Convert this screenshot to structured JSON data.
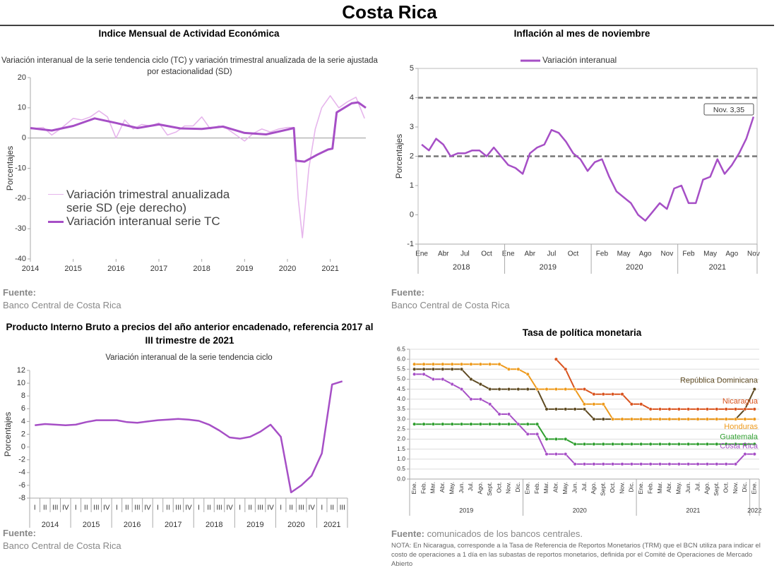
{
  "title": "Costa Rica",
  "chart_data": [
    {
      "type": "line",
      "title": "Indice Mensual de  Actividad Económica",
      "subtitle": "Variación interanual de la serie tendencia ciclo (TC) y variación trimestral anualizada de la serie ajustada por estacionalidad (SD)",
      "ylabel": "Porcentajes",
      "xlim": [
        2014,
        2021.83
      ],
      "xticks": [
        2014,
        2015,
        2016,
        2017,
        2018,
        2019,
        2020,
        2021
      ],
      "ylim": [
        -40,
        20
      ],
      "yticks": [
        -40,
        -30,
        -20,
        -10,
        0,
        10,
        20
      ],
      "series": [
        {
          "name": "Variación trimestral anualizada serie SD (eje derecho)",
          "color": "#e6b5ec",
          "x": [
            2014,
            2014.3,
            2014.5,
            2014.7,
            2015,
            2015.2,
            2015.4,
            2015.6,
            2015.8,
            2016,
            2016.2,
            2016.4,
            2016.6,
            2016.8,
            2017,
            2017.2,
            2017.4,
            2017.6,
            2017.8,
            2018,
            2018.2,
            2018.4,
            2018.6,
            2018.8,
            2019,
            2019.2,
            2019.4,
            2019.6,
            2019.8,
            2020,
            2020.15,
            2020.25,
            2020.35,
            2020.5,
            2020.65,
            2020.8,
            2021,
            2021.2,
            2021.4,
            2021.6,
            2021.8
          ],
          "values": [
            3,
            3.5,
            1,
            3,
            6.5,
            6,
            7,
            9,
            7,
            0,
            6,
            3,
            4.5,
            4,
            5,
            1,
            2,
            4,
            4,
            7,
            3,
            4,
            3,
            1,
            -1,
            1.5,
            3,
            2,
            3,
            3.5,
            3.5,
            -20,
            -33,
            -10,
            3,
            10,
            14,
            10,
            12,
            13.5,
            6.5
          ]
        },
        {
          "name": "Variación interanual serie TC",
          "color": "#a64fc6",
          "x": [
            2014,
            2014.5,
            2015,
            2015.5,
            2016,
            2016.5,
            2017,
            2017.5,
            2018,
            2018.5,
            2019,
            2019.5,
            2020,
            2020.15,
            2020.2,
            2020.4,
            2020.7,
            2020.95,
            2021.05,
            2021.15,
            2021.5,
            2021.65,
            2021.83
          ],
          "values": [
            3.3,
            2.5,
            4,
            6.5,
            5,
            3.3,
            4.5,
            3.2,
            3,
            3.8,
            1.7,
            1.2,
            2.8,
            3.3,
            -7.5,
            -7.8,
            -5.5,
            -3.8,
            -3.5,
            8.5,
            11.5,
            11.8,
            10
          ]
        }
      ],
      "source_label": "Fuente:",
      "source": "Banco Central de Costa Rica"
    },
    {
      "type": "line",
      "title": "Inflación al mes de noviembre",
      "ylabel": "Porcentajes",
      "categories": [
        "Ene",
        null,
        null,
        "Abr",
        null,
        null,
        "Jul",
        null,
        null,
        "Oct",
        null,
        null,
        "Ene",
        null,
        null,
        "Abr",
        null,
        null,
        "Jul",
        null,
        null,
        "Oct",
        null,
        null,
        null,
        "Feb",
        null,
        null,
        "May",
        null,
        null,
        "Ago",
        null,
        null,
        "Nov",
        null,
        null,
        "Feb",
        null,
        null,
        "May",
        null,
        null,
        "Ago",
        null,
        null,
        "Nov"
      ],
      "x_groups": [
        {
          "label": "2018",
          "count": 12
        },
        {
          "label": "2019",
          "count": 12
        },
        {
          "label": "2020",
          "count": 12
        },
        {
          "label": "2021",
          "count": 11
        }
      ],
      "ylim": [
        -1,
        5
      ],
      "yticks": [
        -1,
        0,
        1,
        2,
        3,
        4,
        5
      ],
      "reference_lines": [
        2,
        4
      ],
      "series": [
        {
          "name": "Variación interanual",
          "color": "#a64fc6",
          "values": [
            2.4,
            2.2,
            2.6,
            2.4,
            2.0,
            2.1,
            2.1,
            2.2,
            2.2,
            2.0,
            2.3,
            2.0,
            1.7,
            1.6,
            1.4,
            2.1,
            2.3,
            2.4,
            2.9,
            2.8,
            2.5,
            2.1,
            1.9,
            1.5,
            1.8,
            1.9,
            1.3,
            0.8,
            0.6,
            0.4,
            0.0,
            -0.2,
            0.1,
            0.4,
            0.2,
            0.9,
            1.0,
            0.4,
            0.4,
            1.2,
            1.3,
            1.9,
            1.4,
            1.7,
            2.1,
            2.6,
            3.35
          ]
        }
      ],
      "annotation": "Nov. 3,35",
      "source_label": "Fuente:",
      "source": "Banco Central de Costa Rica"
    },
    {
      "type": "line",
      "title": "Producto Interno Bruto a precios del año anterior encadenado, referencia 2017 al III trimestre de 2021",
      "subtitle": "Variación interanual de la serie tendencia ciclo",
      "ylabel": "Porcentajes",
      "categories": [
        "I",
        "II",
        "III",
        "IV",
        "I",
        "II",
        "III",
        "IV",
        "I",
        "II",
        "III",
        "IV",
        "I",
        "II",
        "III",
        "IV",
        "I",
        "II",
        "III",
        "IV",
        "I",
        "II",
        "III",
        "IV",
        "I",
        "II",
        "III",
        "IV",
        "I",
        "II",
        "III"
      ],
      "x_groups": [
        {
          "label": "2014",
          "count": 4
        },
        {
          "label": "2015",
          "count": 4
        },
        {
          "label": "2016",
          "count": 4
        },
        {
          "label": "2017",
          "count": 4
        },
        {
          "label": "2018",
          "count": 4
        },
        {
          "label": "2019",
          "count": 4
        },
        {
          "label": "2020",
          "count": 4
        },
        {
          "label": "2021",
          "count": 3
        }
      ],
      "ylim": [
        -8,
        12
      ],
      "yticks": [
        -8,
        -6,
        -4,
        -2,
        0,
        2,
        4,
        6,
        8,
        10,
        12
      ],
      "series": [
        {
          "name": "PIB",
          "color": "#a64fc6",
          "values": [
            3.4,
            3.6,
            3.5,
            3.4,
            3.5,
            3.9,
            4.2,
            4.2,
            4.2,
            3.9,
            3.8,
            4.0,
            4.2,
            4.3,
            4.4,
            4.3,
            4.1,
            3.5,
            2.6,
            1.5,
            1.3,
            1.6,
            2.4,
            3.5,
            1.6,
            -7.1,
            -6.0,
            -4.5,
            -1.0,
            9.8,
            10.3
          ]
        }
      ],
      "source_label": "Fuente:",
      "source": "Banco Central de Costa Rica"
    },
    {
      "type": "line",
      "title": "Tasa de política monetaria",
      "categories": [
        "Ene.",
        "Feb.",
        "Mar.",
        "Abr.",
        "May.",
        "Jun.",
        "Jul.",
        "Ago.",
        "Sept.",
        "Oct.",
        "Nov.",
        "Dic.",
        "Ene.",
        "Feb.",
        "Mar.",
        "Abr.",
        "May.",
        "Jun.",
        "Jul.",
        "Ago.",
        "Sept.",
        "Oct.",
        "Nov.",
        "Dic.",
        "Ene.",
        "Feb.",
        "Mar.",
        "Abr.",
        "May.",
        "Jun.",
        "Jul.",
        "Ago.",
        "Sept.",
        "Oct.",
        "Nov.",
        "Dic.",
        "Ene."
      ],
      "x_groups": [
        {
          "label": "2019",
          "count": 12
        },
        {
          "label": "2020",
          "count": 12
        },
        {
          "label": "2021",
          "count": 12
        },
        {
          "label": "2022",
          "count": 1
        }
      ],
      "ylim": [
        0,
        6.5
      ],
      "yticks": [
        {
          "value": 0,
          "label": "0.0"
        },
        0.5,
        {
          "value": 1,
          "label": "1.0"
        },
        1.5,
        {
          "value": 2,
          "label": "2.0"
        },
        2.5,
        {
          "value": 3,
          "label": "3.0"
        },
        3.5,
        {
          "value": 4,
          "label": "4.0"
        },
        4.5,
        {
          "value": 5,
          "label": "5.0"
        },
        5.5,
        {
          "value": 6,
          "label": "6.0"
        },
        6.5
      ],
      "grid": true,
      "series": [
        {
          "name": "República Dominicana",
          "color": "#5e4a22",
          "values": [
            5.5,
            5.5,
            5.5,
            5.5,
            5.5,
            5.5,
            5.0,
            4.75,
            4.5,
            4.5,
            4.5,
            4.5,
            4.5,
            4.5,
            3.5,
            3.5,
            3.5,
            3.5,
            3.5,
            3.0,
            3.0,
            3.0,
            3.0,
            3.0,
            3.0,
            3.0,
            3.0,
            3.0,
            3.0,
            3.0,
            3.0,
            3.0,
            3.0,
            3.0,
            3.0,
            3.5,
            4.5
          ]
        },
        {
          "name": "Nicaragua",
          "color": "#d9531e",
          "values": [
            null,
            null,
            null,
            null,
            null,
            null,
            null,
            null,
            null,
            null,
            null,
            null,
            null,
            null,
            null,
            6.0,
            5.5,
            4.5,
            4.5,
            4.25,
            4.25,
            4.25,
            4.25,
            3.75,
            3.75,
            3.5,
            3.5,
            3.5,
            3.5,
            3.5,
            3.5,
            3.5,
            3.5,
            3.5,
            3.5,
            3.5,
            3.5
          ]
        },
        {
          "name": "Honduras",
          "color": "#ee9a1c",
          "values": [
            5.75,
            5.75,
            5.75,
            5.75,
            5.75,
            5.75,
            5.75,
            5.75,
            5.75,
            5.75,
            5.5,
            5.5,
            5.25,
            4.5,
            4.5,
            4.5,
            4.5,
            4.5,
            3.75,
            3.75,
            3.75,
            3.0,
            3.0,
            3.0,
            3.0,
            3.0,
            3.0,
            3.0,
            3.0,
            3.0,
            3.0,
            3.0,
            3.0,
            3.0,
            3.0,
            3.0,
            3.0
          ]
        },
        {
          "name": "Guatemala",
          "color": "#2e9e2e",
          "values": [
            2.75,
            2.75,
            2.75,
            2.75,
            2.75,
            2.75,
            2.75,
            2.75,
            2.75,
            2.75,
            2.75,
            2.75,
            2.75,
            2.75,
            2.0,
            2.0,
            2.0,
            1.75,
            1.75,
            1.75,
            1.75,
            1.75,
            1.75,
            1.75,
            1.75,
            1.75,
            1.75,
            1.75,
            1.75,
            1.75,
            1.75,
            1.75,
            1.75,
            1.75,
            1.75,
            1.75,
            1.75
          ]
        },
        {
          "name": "Costa Rica",
          "color": "#a64fc6",
          "values": [
            5.25,
            5.25,
            5.0,
            5.0,
            4.75,
            4.5,
            4.0,
            4.0,
            3.75,
            3.25,
            3.25,
            2.75,
            2.25,
            2.25,
            1.25,
            1.25,
            1.25,
            0.75,
            0.75,
            0.75,
            0.75,
            0.75,
            0.75,
            0.75,
            0.75,
            0.75,
            0.75,
            0.75,
            0.75,
            0.75,
            0.75,
            0.75,
            0.75,
            0.75,
            0.75,
            1.25,
            1.25
          ]
        }
      ],
      "source_label": "Fuente:",
      "source": "comunicados de los bancos centrales.",
      "note": "NOTA: En Nicaragua, corresponde a la Tasa de Referencia de Reportos Monetarios (TRM) que el BCN utiliza para indicar el costo de operaciones a 1 día en las subastas de reportos monetarios, definida por el Comité de Operaciones de Mercado Abierto"
    }
  ]
}
